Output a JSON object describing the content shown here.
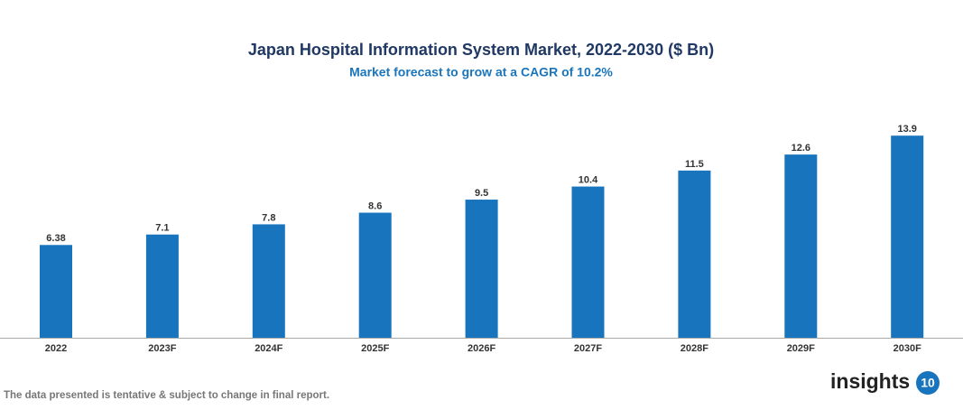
{
  "chart_data": {
    "type": "bar",
    "title": "Japan Hospital Information System Market, 2022-2030 ($ Bn)",
    "subtitle": "Market forecast to grow at a CAGR of 10.2%",
    "categories": [
      "2022",
      "2023F",
      "2024F",
      "2025F",
      "2026F",
      "2027F",
      "2028F",
      "2029F",
      "2030F"
    ],
    "values": [
      6.38,
      7.1,
      7.8,
      8.6,
      9.5,
      10.4,
      11.5,
      12.6,
      13.9
    ],
    "color": "#1874bd"
  },
  "footer": {
    "note": "The data presented is tentative & subject to change in final report."
  },
  "logo": {
    "text": "insights",
    "number": "10"
  }
}
